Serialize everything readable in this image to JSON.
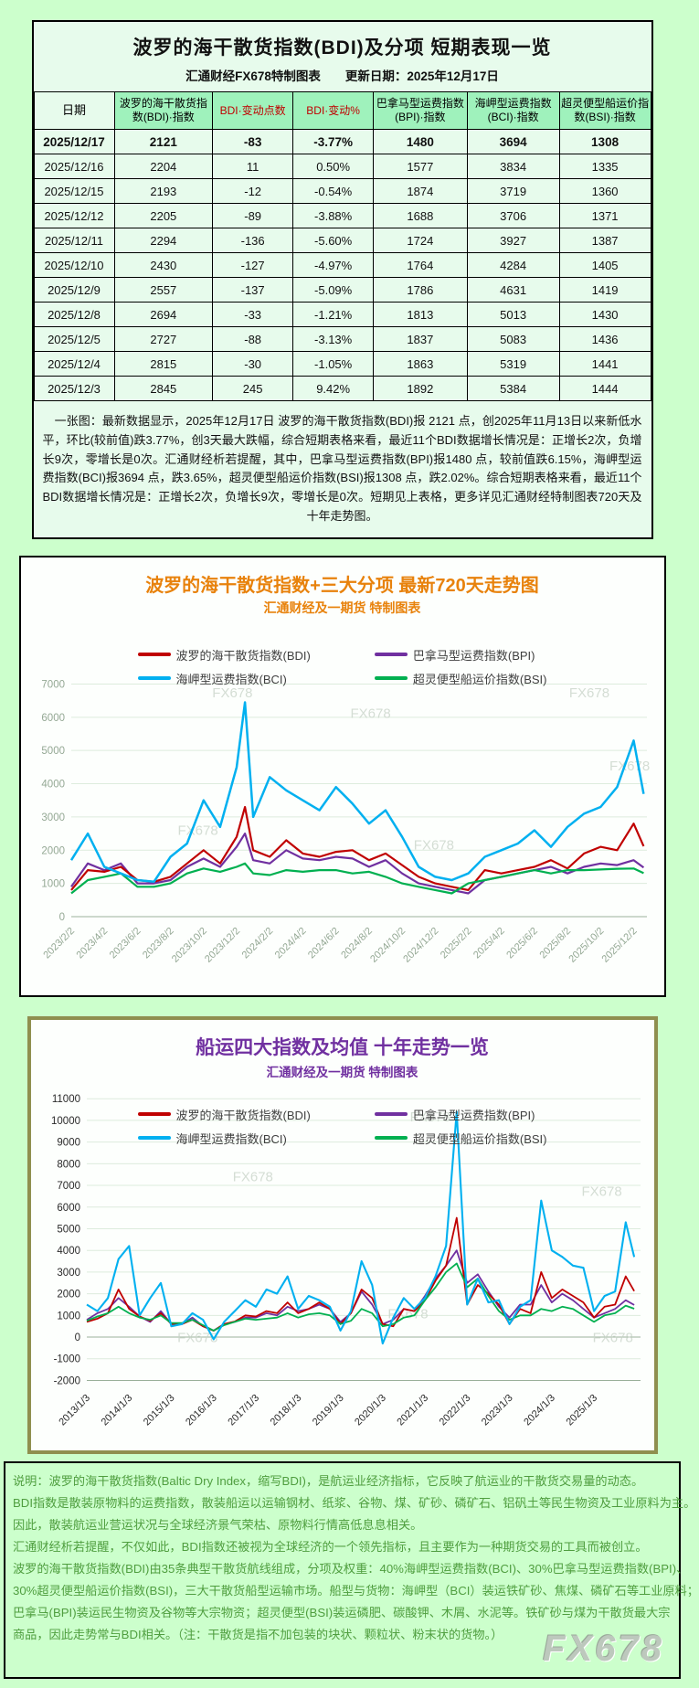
{
  "colors": {
    "page_background": "#ccffcc",
    "table_header_green": "#9ff2bc",
    "table_header_red_text": "#c00000",
    "chart720_title": "#e8820c",
    "chart10y_title": "#7030a0",
    "footer_text_green": "#4f9e3f",
    "watermark_gray": "#c9d4c9"
  },
  "watermark": "FX678",
  "table_section": {
    "title": "波罗的海干散货指数(BDI)及分项  短期表现一览",
    "subtitle": "汇通财经FX678特制图表　　更新日期：2025年12月17日",
    "columns": [
      "日期",
      "波罗的海干散货指数(BDI)·指数",
      "BDI·变动点数",
      "BDI·变动%",
      "巴拿马型运费指数(BPI)·指数",
      "海岬型运费指数(BCI)·指数",
      "超灵便型船运价指数(BSI)·指数"
    ],
    "rows": [
      [
        "2025/12/17",
        "2121",
        "-83",
        "-3.77%",
        "1480",
        "3694",
        "1308"
      ],
      [
        "2025/12/16",
        "2204",
        "11",
        "0.50%",
        "1577",
        "3834",
        "1335"
      ],
      [
        "2025/12/15",
        "2193",
        "-12",
        "-0.54%",
        "1874",
        "3719",
        "1360"
      ],
      [
        "2025/12/12",
        "2205",
        "-89",
        "-3.88%",
        "1688",
        "3706",
        "1371"
      ],
      [
        "2025/12/11",
        "2294",
        "-136",
        "-5.60%",
        "1724",
        "3927",
        "1387"
      ],
      [
        "2025/12/10",
        "2430",
        "-127",
        "-4.97%",
        "1764",
        "4284",
        "1405"
      ],
      [
        "2025/12/9",
        "2557",
        "-137",
        "-5.09%",
        "1786",
        "4631",
        "1419"
      ],
      [
        "2025/12/8",
        "2694",
        "-33",
        "-1.21%",
        "1813",
        "5013",
        "1430"
      ],
      [
        "2025/12/5",
        "2727",
        "-88",
        "-3.13%",
        "1837",
        "5083",
        "1436"
      ],
      [
        "2025/12/4",
        "2815",
        "-30",
        "-1.05%",
        "1863",
        "5319",
        "1441"
      ],
      [
        "2025/12/3",
        "2845",
        "245",
        "9.42%",
        "1892",
        "5384",
        "1444"
      ]
    ],
    "note": "　一张图：最新数据显示，2025年12月17日 波罗的海干散货指数(BDI)报 2121 点，创2025年11月13日以来新低水平，环比(较前值)跌3.77%，创3天最大跌幅，综合短期表格来看，最近11个BDI数据增长情况是：正增长2次，负增长9次，零增长是0次。汇通财经析若提醒，其中，巴拿马型运费指数(BPI)报1480 点，较前值跌6.15%，海岬型运费指数(BCI)报3694 点，跌3.65%，超灵便型船运价指数(BSI)报1308 点，跌2.02%。综合短期表格来看，最近11个BDI数据增长情况是：正增长2次，负增长9次，零增长是0次。短期见上表格，更多详见汇通财经特制图表720天及十年走势图。"
  },
  "chart_data": [
    {
      "type": "line",
      "title": "波罗的海干散货指数+三大分项  最新720天走势图",
      "subtitle": "汇通财经及一期货  特制图表",
      "title_color": "#e8820c",
      "grid": true,
      "legend_position": "top-overlay",
      "xlabel": "",
      "ylabel": "",
      "ylim": [
        0,
        7000
      ],
      "y_ticks": [
        0,
        1000,
        2000,
        3000,
        4000,
        5000,
        6000,
        7000
      ],
      "xlim": [
        0,
        34.8
      ],
      "x": [
        0,
        1,
        2,
        3,
        4,
        5,
        6,
        7,
        8,
        9,
        10,
        10.5,
        11,
        12,
        13,
        14,
        15,
        16,
        17,
        18,
        19,
        20,
        21,
        22,
        23,
        24,
        25,
        26,
        27,
        28,
        29,
        30,
        31,
        32,
        33,
        34,
        34.6
      ],
      "x_tick_positions": [
        0,
        2,
        4,
        6,
        8,
        10,
        12,
        14,
        16,
        18,
        20,
        22,
        24,
        26,
        28,
        30,
        32,
        34
      ],
      "x_tick_labels": [
        "2023/2/2",
        "2023/4/2",
        "2023/6/2",
        "2023/8/2",
        "2023/10/2",
        "2023/12/2",
        "2024/2/2",
        "2024/4/2",
        "2024/6/2",
        "2024/8/2",
        "2024/10/2",
        "2024/12/2",
        "2025/2/2",
        "2025/4/2",
        "2025/6/2",
        "2025/8/2",
        "2025/10/2",
        "2025/12/2"
      ],
      "series": [
        {
          "name": "波罗的海干散货指数(BDI)",
          "color": "#c00000",
          "values": [
            800,
            1400,
            1350,
            1500,
            1100,
            1050,
            1200,
            1600,
            2000,
            1600,
            2400,
            3300,
            2000,
            1800,
            2300,
            1900,
            1800,
            1950,
            2000,
            1700,
            1900,
            1550,
            1200,
            1000,
            900,
            800,
            1400,
            1300,
            1400,
            1500,
            1700,
            1450,
            1900,
            2100,
            2000,
            2800,
            2121
          ]
        },
        {
          "name": "巴拿马型运费指数(BPI)",
          "color": "#7030a0",
          "values": [
            900,
            1600,
            1400,
            1600,
            1000,
            1000,
            1100,
            1500,
            1750,
            1500,
            2100,
            2500,
            1700,
            1600,
            2000,
            1750,
            1700,
            1800,
            1750,
            1500,
            1700,
            1300,
            1000,
            900,
            800,
            700,
            1100,
            1200,
            1300,
            1400,
            1500,
            1300,
            1500,
            1600,
            1550,
            1700,
            1480
          ]
        },
        {
          "name": "海岬型运费指数(BCI)",
          "color": "#00b0f0",
          "values": [
            1700,
            2500,
            1500,
            1300,
            1100,
            1050,
            1800,
            2200,
            3500,
            2700,
            4500,
            6450,
            3000,
            4200,
            3800,
            3500,
            3200,
            3900,
            3400,
            2800,
            3200,
            2400,
            1500,
            1200,
            1100,
            1300,
            1800,
            2000,
            2200,
            2600,
            2100,
            2700,
            3100,
            3300,
            3900,
            5300,
            3694
          ]
        },
        {
          "name": "超灵便型船运价指数(BSI)",
          "color": "#00b050",
          "values": [
            700,
            1100,
            1200,
            1300,
            900,
            900,
            1000,
            1300,
            1450,
            1350,
            1500,
            1600,
            1300,
            1250,
            1400,
            1350,
            1400,
            1400,
            1300,
            1350,
            1200,
            1000,
            900,
            800,
            700,
            1000,
            1100,
            1200,
            1300,
            1400,
            1300,
            1400,
            1400,
            1420,
            1440,
            1450,
            1308
          ]
        }
      ]
    },
    {
      "type": "line",
      "title": "船运四大指数及均值 十年走势一览",
      "subtitle": "汇通财经及一期货 特制图表",
      "title_color": "#7030a0",
      "grid": true,
      "legend_position": "top-overlay",
      "xlabel": "",
      "ylabel": "",
      "ylim": [
        -2000,
        11000
      ],
      "y_ticks": [
        -2000,
        -1000,
        0,
        1000,
        2000,
        3000,
        4000,
        5000,
        6000,
        7000,
        8000,
        9000,
        10000,
        11000
      ],
      "xlim": [
        0,
        52.4
      ],
      "x": [
        0,
        1,
        2,
        3,
        4,
        5,
        6,
        7,
        8,
        9,
        10,
        11,
        12,
        13,
        14,
        15,
        16,
        17,
        18,
        19,
        20,
        21,
        22,
        23,
        24,
        25,
        26,
        27,
        28,
        29,
        30,
        31,
        32,
        33,
        34,
        35,
        36,
        37,
        38,
        39,
        40,
        41,
        42,
        43,
        44,
        45,
        46,
        47,
        48,
        49,
        50,
        51,
        51.8
      ],
      "x_tick_positions": [
        0,
        4,
        8,
        12,
        16,
        20,
        24,
        28,
        32,
        36,
        40,
        44,
        48
      ],
      "x_tick_labels": [
        "2013/1/3",
        "2014/1/3",
        "2015/1/3",
        "2016/1/3",
        "2017/1/3",
        "2018/1/3",
        "2019/1/3",
        "2020/1/3",
        "2021/1/3",
        "2022/1/3",
        "2023/1/3",
        "2024/1/3",
        "2025/1/3"
      ],
      "series": [
        {
          "name": "波罗的海干散货指数(BDI)",
          "color": "#c00000",
          "values": [
            700,
            850,
            1100,
            2200,
            1300,
            950,
            750,
            1100,
            600,
            600,
            800,
            500,
            290,
            600,
            720,
            1000,
            950,
            1200,
            1100,
            1600,
            1100,
            1300,
            1600,
            1300,
            600,
            1100,
            2200,
            1800,
            600,
            500,
            1300,
            1200,
            1700,
            2600,
            3300,
            5500,
            1500,
            2400,
            2000,
            1500,
            600,
            1300,
            1100,
            3000,
            1800,
            2200,
            1900,
            1600,
            900,
            1400,
            1500,
            2800,
            2121
          ]
        },
        {
          "name": "巴拿马型运费指数(BPI)",
          "color": "#7030a0",
          "values": [
            800,
            1100,
            1300,
            1800,
            1400,
            950,
            700,
            1200,
            600,
            600,
            900,
            500,
            300,
            600,
            700,
            900,
            900,
            1100,
            1000,
            1400,
            1200,
            1300,
            1500,
            1300,
            700,
            1100,
            2100,
            1500,
            600,
            800,
            1300,
            1200,
            1900,
            2700,
            3300,
            4000,
            2500,
            2900,
            2100,
            1400,
            900,
            1500,
            1500,
            2400,
            1600,
            2000,
            1700,
            1300,
            900,
            1100,
            1300,
            1700,
            1480
          ]
        },
        {
          "name": "海岬型运费指数(BCI)",
          "color": "#00b0f0",
          "values": [
            1500,
            1200,
            1800,
            3600,
            4200,
            1000,
            1800,
            2500,
            500,
            600,
            1100,
            800,
            -100,
            700,
            1200,
            1700,
            1400,
            2200,
            2000,
            2800,
            1300,
            1900,
            1700,
            1400,
            300,
            1200,
            3500,
            2400,
            -300,
            900,
            1800,
            1300,
            1800,
            2800,
            4200,
            10400,
            1500,
            2700,
            1600,
            1700,
            600,
            1400,
            1700,
            6300,
            4000,
            3700,
            3300,
            3200,
            1200,
            1900,
            2100,
            5300,
            3694
          ]
        },
        {
          "name": "超灵便型船运价指数(BSI)",
          "color": "#00b050",
          "values": [
            750,
            950,
            1100,
            1400,
            1100,
            900,
            800,
            1000,
            650,
            650,
            800,
            550,
            300,
            550,
            700,
            850,
            800,
            850,
            900,
            1100,
            900,
            1050,
            1100,
            1000,
            600,
            750,
            1300,
            1100,
            500,
            600,
            900,
            1000,
            1700,
            2300,
            3000,
            3400,
            2300,
            2700,
            1900,
            1200,
            800,
            1000,
            1000,
            1300,
            1200,
            1400,
            1300,
            1000,
            700,
            1000,
            1100,
            1450,
            1308
          ]
        }
      ]
    }
  ],
  "footer": {
    "lines": [
      "说明：波罗的海干散货指数(Baltic Dry Index，缩写BDI)，是航运业经济指标，它反映了航运业的干散货交易量的动态。",
      "BDI指数是散装原物料的运费指数，散装船运以运输钢材、纸浆、谷物、煤、矿砂、磷矿石、铝矾土等民生物资及工业原料为主。",
      "因此，散装航运业营运状况与全球经济景气荣枯、原物料行情高低息息相关。",
      "汇通财经析若提醒，不仅如此，BDI指数还被视为全球经济的一个领先指标，且主要作为一种期货交易的工具而被创立。",
      "波罗的海干散货指数(BDI)由35条典型干散货航线组成，分项及权重：40%海岬型运费指数(BCI)、30%巴拿马型运费指数(BPI)、",
      "30%超灵便型船运价指数(BSI)，三大干散货船型运输市场。船型与货物：海岬型（BCI）装运铁矿砂、焦煤、磷矿石等工业原料；",
      "巴拿马(BPI)装运民生物资及谷物等大宗物资；超灵便型(BSI)装运磷肥、碳酸钾、木屑、水泥等。铁矿砂与煤为干散货最大宗",
      "商品，因此走势常与BDI相关。（注：干散货是指不加包装的块状、颗粒状、粉末状的货物。）"
    ],
    "watermark": "FX678"
  }
}
